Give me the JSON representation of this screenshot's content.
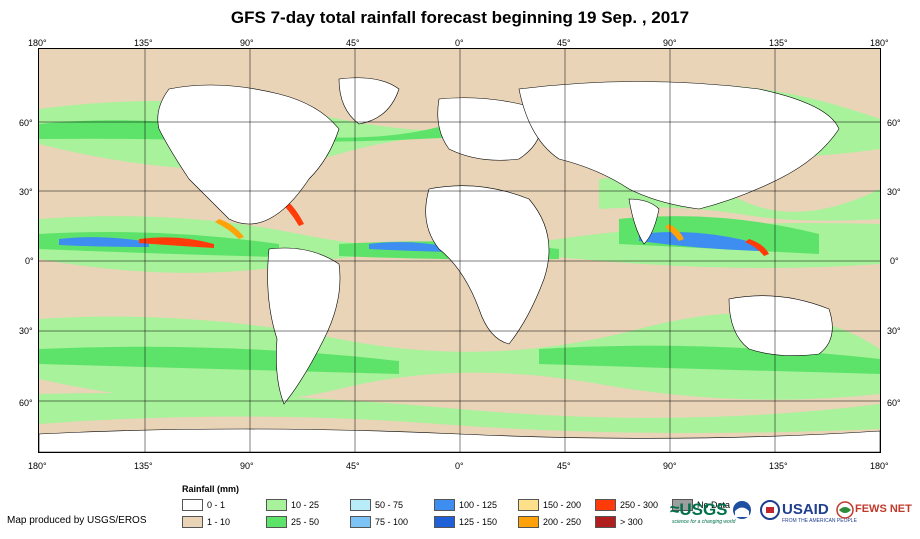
{
  "title": "GFS 7-day total rainfall forecast beginning 19 Sep. , 2017",
  "axes": {
    "top_ticks": [
      "180°",
      "135°",
      "90°",
      "45°",
      "0°",
      "45°",
      "90°",
      "135°",
      "180°"
    ],
    "bottom_ticks": [
      "180°",
      "135°",
      "90°",
      "45°",
      "0°",
      "45°",
      "90°",
      "135°",
      "180°"
    ],
    "left_ticks": [
      "60°",
      "30°",
      "0°",
      "30°",
      "60°"
    ],
    "right_ticks": [
      "60°",
      "30°",
      "0°",
      "30°",
      "60°"
    ]
  },
  "legend": {
    "title": "Rainfall (mm)",
    "items": [
      {
        "label": "0 - 1",
        "color": "#ffffff"
      },
      {
        "label": "1 - 10",
        "color": "#e9d4b8"
      },
      {
        "label": "10 - 25",
        "color": "#a7f29a"
      },
      {
        "label": "25 - 50",
        "color": "#5ee36a"
      },
      {
        "label": "50 - 75",
        "color": "#b7ecf8"
      },
      {
        "label": "75 - 100",
        "color": "#7ec3f5"
      },
      {
        "label": "100 - 125",
        "color": "#3d8ef0"
      },
      {
        "label": "125 - 150",
        "color": "#1f5fd8"
      },
      {
        "label": "150 - 200",
        "color": "#ffe08a"
      },
      {
        "label": "200 - 250",
        "color": "#ffa20a"
      },
      {
        "label": "250 - 300",
        "color": "#ff3b0a"
      },
      {
        "label": "> 300",
        "color": "#b01e1e"
      },
      {
        "label": "No Data",
        "color": "#9e9e9e"
      }
    ]
  },
  "credit": "Map produced by USGS/EROS",
  "logos": {
    "usgs": "≈USGS",
    "usgs_tagline": "science for a changing world",
    "usaid": "USAID",
    "usaid_tagline": "FROM THE AMERICAN PEOPLE",
    "fewsnet": "FEWS NET"
  },
  "colors": {
    "ocean_light": "#e9d4b8",
    "land_dry": "#ffffff",
    "light_rain": "#a7f29a",
    "moderate_rain": "#5ee36a",
    "heavy_rain": "#3d8ef0",
    "extreme_rain": "#ff3b0a"
  }
}
